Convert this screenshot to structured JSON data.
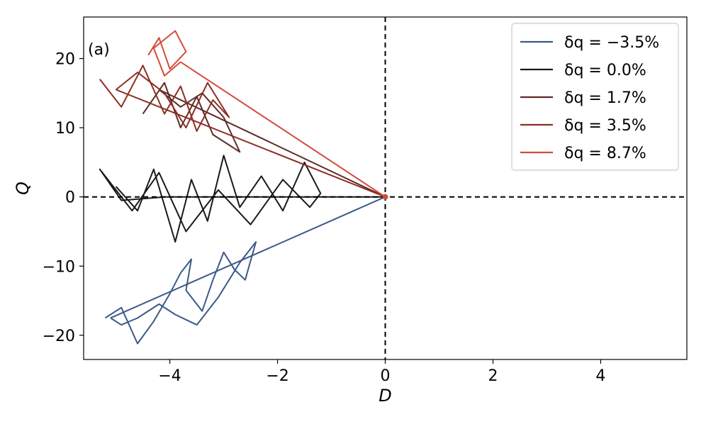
{
  "chart_data": {
    "type": "line",
    "panel_label": "(a)",
    "xlabel": "D",
    "ylabel": "Q",
    "xlim": [
      -5.6,
      5.6
    ],
    "ylim": [
      -23.5,
      26
    ],
    "xticks": [
      -4,
      -2,
      0,
      2,
      4
    ],
    "yticks": [
      -20,
      -10,
      0,
      10,
      20
    ],
    "xtick_labels": [
      "−4",
      "−2",
      "0",
      "2",
      "4"
    ],
    "ytick_labels": [
      "−20",
      "−10",
      "0",
      "10",
      "20"
    ],
    "grid": false,
    "reference_lines": {
      "x": 0,
      "y": 0,
      "style": "dashed",
      "color": "#000000"
    },
    "legend_position": "top-right",
    "series": [
      {
        "name": "δq = −3.5%",
        "color": "#3b5a88",
        "x": [
          -5.2,
          -4.9,
          -4.6,
          -4.3,
          -4.0,
          -3.8,
          -3.6,
          -3.7,
          -3.4,
          -3.2,
          -3.0,
          -2.8,
          -2.6,
          -2.4,
          -2.7,
          -3.1,
          -3.5,
          -3.9,
          -4.2,
          -4.6,
          -4.9,
          -5.1
        ],
        "y": [
          -17.5,
          -16.0,
          -21.2,
          -18.0,
          -14.0,
          -11.0,
          -9.0,
          -13.5,
          -16.5,
          -12.0,
          -8.0,
          -10.5,
          -12.0,
          -6.5,
          -9.5,
          -14.5,
          -18.5,
          -17.0,
          -15.5,
          -17.5,
          -18.5,
          -17.5
        ],
        "segment_to": [
          0,
          0
        ]
      },
      {
        "name": "δq = 0.0%",
        "color": "#1a1a1a",
        "x": [
          -5.0,
          -4.6,
          -4.3,
          -3.9,
          -3.6,
          -3.3,
          -3.0,
          -2.7,
          -2.3,
          -1.9,
          -1.5,
          -1.2,
          -1.4,
          -1.9,
          -2.5,
          -3.1,
          -3.7,
          -4.2,
          -4.7,
          -5.3,
          -4.9,
          -4.1
        ],
        "y": [
          1.5,
          -2.0,
          4.0,
          -6.5,
          2.5,
          -3.5,
          6.0,
          -1.5,
          3.0,
          -2.0,
          5.0,
          0.5,
          -1.5,
          2.5,
          -4.0,
          1.0,
          -5.0,
          3.5,
          -2.0,
          4.0,
          -0.5,
          0.0
        ],
        "segment_to": [
          0,
          0
        ]
      },
      {
        "name": "δq = 1.7%",
        "color": "#5c2b28",
        "x": [
          -4.5,
          -4.1,
          -3.8,
          -3.5,
          -3.2,
          -2.9,
          -2.7,
          -3.0,
          -3.4,
          -3.8,
          -4.2
        ],
        "y": [
          12.0,
          16.5,
          10.0,
          14.5,
          9.0,
          7.5,
          6.5,
          11.5,
          15.0,
          13.0,
          15.5
        ],
        "segment_to": [
          0,
          0
        ]
      },
      {
        "name": "δq = 3.5%",
        "color": "#8e2e24",
        "x": [
          -5.3,
          -4.9,
          -4.5,
          -4.1,
          -3.8,
          -3.5,
          -3.2,
          -2.9,
          -3.3,
          -3.7,
          -4.1,
          -4.6,
          -5.0
        ],
        "y": [
          17.0,
          13.0,
          19.0,
          12.0,
          16.0,
          9.5,
          14.0,
          11.5,
          16.5,
          10.0,
          15.0,
          18.0,
          15.5
        ],
        "segment_to": [
          0,
          0
        ]
      },
      {
        "name": "δq = 8.7%",
        "color": "#d44b3a",
        "x": [
          -4.4,
          -4.2,
          -4.0,
          -3.7,
          -3.9,
          -4.3,
          -4.1,
          -3.8
        ],
        "y": [
          20.5,
          23.0,
          18.5,
          21.0,
          24.0,
          21.5,
          17.5,
          19.5
        ],
        "segment_to": [
          0,
          0
        ]
      }
    ]
  }
}
